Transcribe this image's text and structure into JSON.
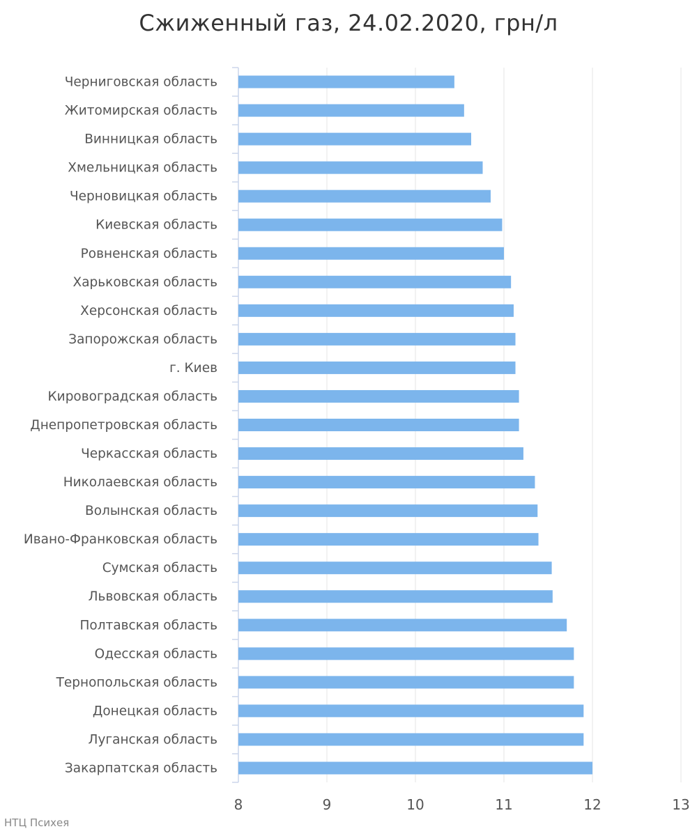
{
  "chart_data": {
    "type": "bar",
    "orientation": "horizontal",
    "title": "Сжиженный газ, 24.02.2020, грн/л",
    "xlabel": "",
    "ylabel": "",
    "xlim": [
      8,
      13
    ],
    "xticks": [
      "8",
      "9",
      "10",
      "11",
      "12",
      "13"
    ],
    "grid": true,
    "bar_color": "#7cb5ec",
    "categories": [
      "Черниговская область",
      "Житомирская область",
      "Винницкая область",
      "Хмельницкая область",
      "Черновицкая область",
      "Киевская область",
      "Ровненская область",
      "Харьковская область",
      "Херсонская область",
      "Запорожская область",
      "г. Киев",
      "Кировоградская область",
      "Днепропетровская область",
      "Черкасская область",
      "Николаевская область",
      "Волынская область",
      "Ивано-Франковская область",
      "Сумская область",
      "Львовская область",
      "Полтавская область",
      "Одесская область",
      "Тернопольская область",
      "Донецкая область",
      "Луганская область",
      "Закарпатская область"
    ],
    "values": [
      10.44,
      10.55,
      10.63,
      10.76,
      10.85,
      10.98,
      11.0,
      11.08,
      11.11,
      11.13,
      11.13,
      11.17,
      11.17,
      11.22,
      11.35,
      11.38,
      11.39,
      11.54,
      11.55,
      11.71,
      11.79,
      11.79,
      11.9,
      11.9,
      12.0
    ]
  },
  "credit": "НТЦ Психея"
}
